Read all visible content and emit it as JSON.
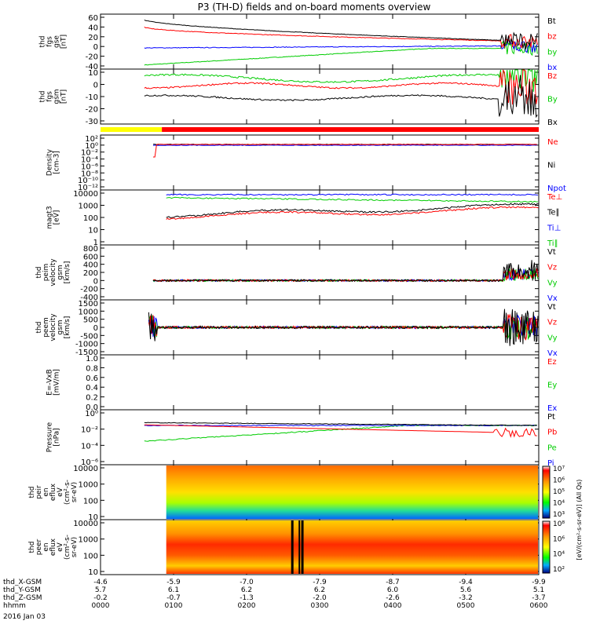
{
  "chart_data": {
    "type": "line",
    "title": "P3 (TH-D) fields and on-board moments overview",
    "time_ticks": [
      "0000",
      "0100",
      "0200",
      "0300",
      "0400",
      "0500",
      "0600"
    ],
    "footer": {
      "rows": [
        {
          "label": "thd_X-GSM",
          "values": [
            "-4.6",
            "-5.9",
            "-7.0",
            "-7.9",
            "-8.7",
            "-9.4",
            "-9.9"
          ]
        },
        {
          "label": "thd_Y-GSM",
          "values": [
            "5.7",
            "6.1",
            "6.2",
            "6.2",
            "6.0",
            "5.6",
            "5.1"
          ]
        },
        {
          "label": "thd_Z-GSM",
          "values": [
            "-0.2",
            "-0.7",
            "-1.3",
            "-2.0",
            "-2.6",
            "-3.2",
            "-3.7"
          ]
        },
        {
          "label": "hhmm",
          "values": [
            "0000",
            "0100",
            "0200",
            "0300",
            "0400",
            "0500",
            "0600"
          ]
        }
      ],
      "date": "2016 Jan 03"
    },
    "panels": [
      {
        "id": "fgs-gse",
        "ylabel": [
          "thd",
          "fgs",
          "gse",
          "[nT]"
        ],
        "yticks": [
          "60",
          "40",
          "20",
          "0",
          "-20",
          "-40"
        ],
        "legend": [
          {
            "text": "Bt",
            "color": "#000000"
          },
          {
            "text": "bz",
            "color": "#ff0000"
          },
          {
            "text": "by",
            "color": "#00cc00"
          },
          {
            "text": "bx",
            "color": "#0000ff"
          }
        ]
      },
      {
        "id": "fgs-gsm",
        "ylabel": [
          "thd",
          "fgs",
          "gsm",
          "[nT]"
        ],
        "yticks": [
          "10",
          "0",
          "-10",
          "-20",
          "-30"
        ],
        "legend": [
          {
            "text": "Bz",
            "color": "#ff0000"
          },
          {
            "text": "By",
            "color": "#00cc00"
          },
          {
            "text": "Bx",
            "color": "#000000"
          }
        ]
      },
      {
        "id": "density",
        "ylabel": [
          "Density",
          "[cm-3]"
        ],
        "yticks": [
          "10²",
          "10⁰",
          "10⁻²",
          "10⁻⁴",
          "10⁻⁶",
          "10⁻⁸",
          "10⁻¹⁰",
          "10⁻¹²"
        ],
        "legend": [
          {
            "text": "Ne",
            "color": "#ff0000"
          },
          {
            "text": "Ni",
            "color": "#000000"
          },
          {
            "text": "Npot",
            "color": "#0000ff"
          }
        ]
      },
      {
        "id": "temperature",
        "ylabel": [
          "magt3",
          "[eV]"
        ],
        "yticks": [
          "10000",
          "1000",
          "100",
          "10",
          "1"
        ],
        "legend": [
          {
            "text": "Te⊥",
            "color": "#ff0000"
          },
          {
            "text": "Te∥",
            "color": "#000000"
          },
          {
            "text": "Ti⊥",
            "color": "#0000ff"
          },
          {
            "text": "Ti∥",
            "color": "#00cc00"
          }
        ]
      },
      {
        "id": "ion-velocity",
        "ylabel": [
          "thd",
          "peim",
          "velocity",
          "gsm",
          "[km/s]"
        ],
        "yticks": [
          "800",
          "600",
          "400",
          "200",
          "0",
          "-200",
          "-400"
        ],
        "legend": [
          {
            "text": "Vt",
            "color": "#000000"
          },
          {
            "text": "Vz",
            "color": "#ff0000"
          },
          {
            "text": "Vy",
            "color": "#00cc00"
          },
          {
            "text": "Vx",
            "color": "#0000ff"
          }
        ]
      },
      {
        "id": "electron-velocity",
        "ylabel": [
          "thd",
          "peem",
          "velocity",
          "gsm",
          "[km/s]"
        ],
        "yticks": [
          "1500",
          "1000",
          "500",
          "0",
          "-500",
          "-1000",
          "-1500"
        ],
        "legend": [
          {
            "text": "Vt",
            "color": "#000000"
          },
          {
            "text": "Vz",
            "color": "#ff0000"
          },
          {
            "text": "Vy",
            "color": "#00cc00"
          },
          {
            "text": "Vx",
            "color": "#0000ff"
          }
        ]
      },
      {
        "id": "efield",
        "ylabel": [
          "E=-VxB",
          "[mV/m]"
        ],
        "yticks": [
          "1.0",
          "0.8",
          "0.6",
          "0.4",
          "0.2",
          "0.0"
        ],
        "legend": [
          {
            "text": "Ez",
            "color": "#ff0000"
          },
          {
            "text": "Ey",
            "color": "#00cc00"
          },
          {
            "text": "Ex",
            "color": "#0000ff"
          }
        ]
      },
      {
        "id": "pressure",
        "ylabel": [
          "Pressure",
          "[nPa]"
        ],
        "yticks": [
          "10⁰",
          "10⁻²",
          "10⁻⁴",
          "10⁻⁶"
        ],
        "legend": [
          {
            "text": "Pt",
            "color": "#000000"
          },
          {
            "text": "Pb",
            "color": "#ff0000"
          },
          {
            "text": "Pe",
            "color": "#00cc00"
          },
          {
            "text": "Pi",
            "color": "#0000ff"
          }
        ]
      },
      {
        "id": "ion-spectrogram",
        "ylabel": [
          "thd",
          "peir",
          "en",
          "eflux",
          "eV",
          "(cm²-s-",
          "sr-eV)"
        ],
        "yticks": [
          "10000",
          "1000",
          "100",
          "10"
        ]
      },
      {
        "id": "electron-spectrogram",
        "ylabel": [
          "thd",
          "peer",
          "en",
          "eflux",
          "eV",
          "(cm²-s-",
          "sr-eV)"
        ],
        "yticks": [
          "10000",
          "1000",
          "100",
          "10"
        ]
      }
    ],
    "colorbar": {
      "ion_ticks": [
        "10⁷",
        "10⁶",
        "10⁵",
        "10⁴",
        "10³"
      ],
      "electron_ticks": [
        "10⁸",
        "10⁶",
        "10⁴",
        "10²"
      ],
      "label": "[eV/(cm²-s-sr-eV)] (All Qs)"
    }
  }
}
